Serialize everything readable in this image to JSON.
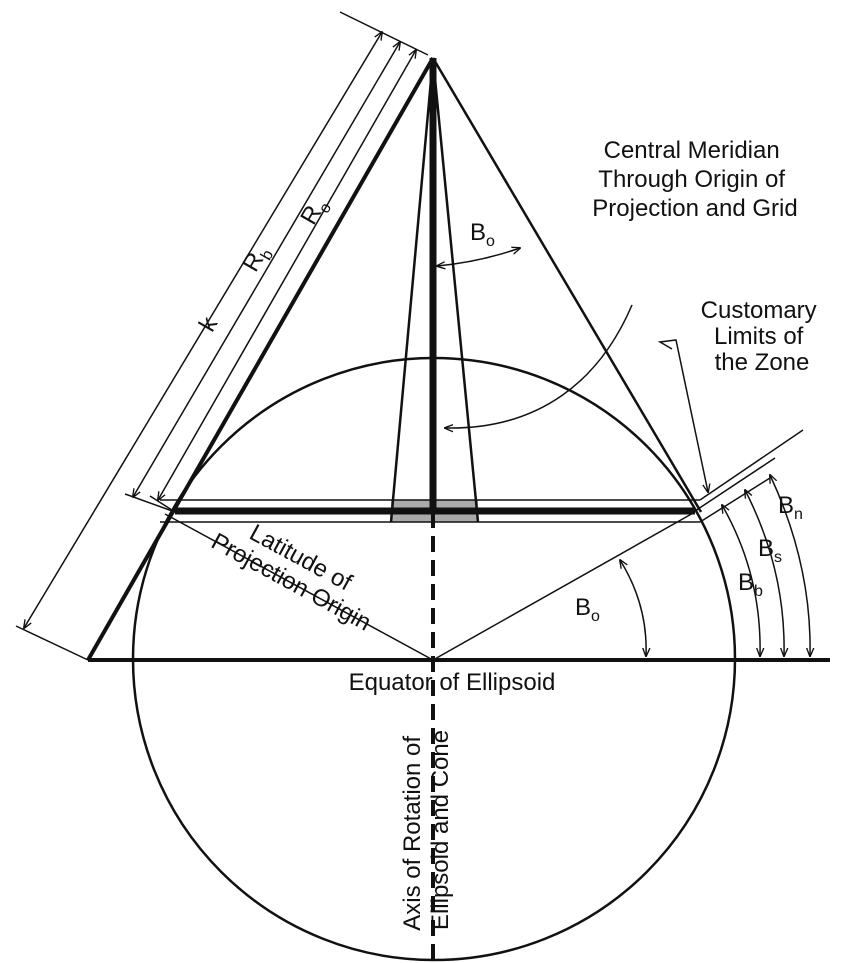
{
  "labels": {
    "k": "k",
    "rb": {
      "base": "R",
      "sub": "b"
    },
    "ro": {
      "base": "R",
      "sub": "o"
    },
    "bo_top": {
      "base": "B",
      "sub": "o"
    },
    "bo_bottom": {
      "base": "B",
      "sub": "o"
    },
    "bn": {
      "base": "B",
      "sub": "n"
    },
    "bs": {
      "base": "B",
      "sub": "s"
    },
    "bb": {
      "base": "B",
      "sub": "b"
    },
    "central_meridian": [
      "Central Meridian",
      "Through Origin of",
      "Projection and Grid"
    ],
    "customary_limits": [
      "Customary",
      "Limits of",
      "the Zone"
    ],
    "latitude_origin": [
      "Latitude of",
      "Projection Origin"
    ],
    "equator": "Equator of Ellipsoid",
    "axis_rotation": [
      "Axis of Rotation of",
      "Ellipsoid and Cone"
    ]
  }
}
